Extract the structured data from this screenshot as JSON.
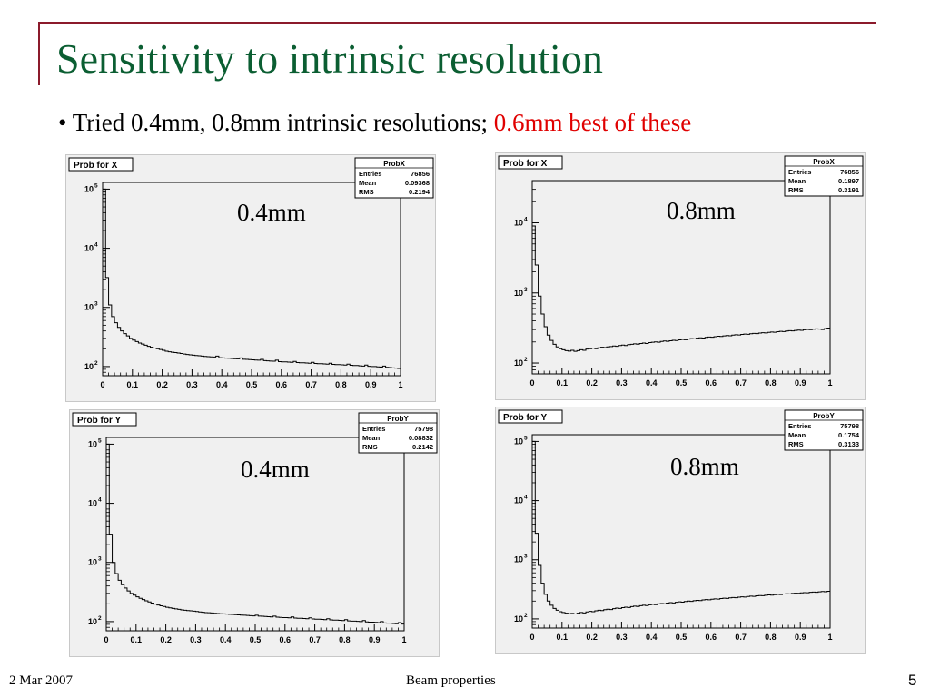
{
  "slide": {
    "title": "Sensitivity to intrinsic resolution",
    "bullet_prefix": "• Tried 0.4mm, 0.8mm intrinsic resolutions; ",
    "bullet_highlight": "0.6mm best of these",
    "footer_date": "2 Mar 2007",
    "footer_center": "Beam properties",
    "page_number": "5",
    "accent_color": "#0b5e32",
    "rule_color": "#8b1a2b",
    "highlight_color": "#e00000"
  },
  "chart_data": [
    {
      "type": "histogram",
      "panel_title": "Prob for X",
      "overlay_label": "0.4mm",
      "stats": {
        "name": "ProbX",
        "rows": [
          [
            "Entries",
            "76856"
          ],
          [
            "Mean",
            "0.09368"
          ],
          [
            "RMS",
            "0.2194"
          ]
        ]
      },
      "x_ticks": [
        "0",
        "0.1",
        "0.2",
        "0.3",
        "0.4",
        "0.5",
        "0.6",
        "0.7",
        "0.8",
        "0.9",
        "1"
      ],
      "y_scale": "log",
      "y_ticks": [
        {
          "base": "10",
          "exp": "2",
          "value": 100
        },
        {
          "base": "10",
          "exp": "3",
          "value": 1000
        },
        {
          "base": "10",
          "exp": "4",
          "value": 10000
        },
        {
          "base": "10",
          "exp": "5",
          "value": 100000
        }
      ],
      "xlim": [
        0,
        1
      ],
      "ylim": [
        70,
        130000
      ],
      "bins": 100,
      "values": [
        100000,
        3200,
        1100,
        700,
        550,
        460,
        400,
        360,
        330,
        300,
        280,
        265,
        250,
        240,
        230,
        220,
        212,
        206,
        200,
        194,
        188,
        182,
        178,
        175,
        172,
        169,
        166,
        163,
        160,
        158,
        156,
        154,
        152,
        150,
        148,
        147,
        146,
        145,
        150,
        141,
        140,
        139,
        138,
        137,
        136,
        135,
        140,
        133,
        132,
        131,
        130,
        129,
        128,
        132,
        126,
        125,
        124,
        123,
        128,
        121,
        120,
        120,
        119,
        118,
        122,
        117,
        116,
        116,
        115,
        114,
        118,
        113,
        112,
        112,
        111,
        110,
        114,
        109,
        108,
        108,
        107,
        106,
        110,
        105,
        104,
        104,
        103,
        102,
        106,
        101,
        100,
        100,
        99,
        98,
        102,
        97,
        96,
        95,
        94,
        93
      ]
    },
    {
      "type": "histogram",
      "panel_title": "Prob for X",
      "overlay_label": "0.8mm",
      "stats": {
        "name": "ProbX",
        "rows": [
          [
            "Entries",
            "76856"
          ],
          [
            "Mean",
            "0.1897"
          ],
          [
            "RMS",
            "0.3191"
          ]
        ]
      },
      "x_ticks": [
        "0",
        "0.1",
        "0.2",
        "0.3",
        "0.4",
        "0.5",
        "0.6",
        "0.7",
        "0.8",
        "0.9",
        "1"
      ],
      "y_scale": "log",
      "y_ticks": [
        {
          "base": "10",
          "exp": "2",
          "value": 100
        },
        {
          "base": "10",
          "exp": "3",
          "value": 1000
        },
        {
          "base": "10",
          "exp": "4",
          "value": 10000
        }
      ],
      "xlim": [
        0,
        1
      ],
      "ylim": [
        70,
        40000
      ],
      "bins": 100,
      "values": [
        9000,
        2500,
        900,
        500,
        330,
        250,
        210,
        185,
        170,
        160,
        155,
        150,
        148,
        152,
        147,
        150,
        155,
        152,
        158,
        160,
        163,
        160,
        165,
        168,
        166,
        170,
        172,
        175,
        173,
        178,
        180,
        178,
        183,
        185,
        188,
        186,
        190,
        193,
        190,
        196,
        198,
        200,
        198,
        203,
        206,
        204,
        208,
        211,
        209,
        214,
        217,
        215,
        220,
        223,
        221,
        226,
        229,
        227,
        232,
        235,
        233,
        238,
        241,
        239,
        244,
        247,
        245,
        250,
        253,
        251,
        256,
        259,
        257,
        262,
        265,
        263,
        268,
        271,
        269,
        274,
        277,
        275,
        280,
        283,
        281,
        286,
        289,
        287,
        292,
        295,
        293,
        298,
        301,
        299,
        304,
        307,
        305,
        300,
        310,
        315
      ]
    },
    {
      "type": "histogram",
      "panel_title": "Prob for Y",
      "overlay_label": "0.4mm",
      "stats": {
        "name": "ProbY",
        "rows": [
          [
            "Entries",
            "75798"
          ],
          [
            "Mean",
            "0.08832"
          ],
          [
            "RMS",
            "0.2142"
          ]
        ]
      },
      "x_ticks": [
        "0",
        "0.1",
        "0.2",
        "0.3",
        "0.4",
        "0.5",
        "0.6",
        "0.7",
        "0.8",
        "0.9",
        "1"
      ],
      "y_scale": "log",
      "y_ticks": [
        {
          "base": "10",
          "exp": "2",
          "value": 100
        },
        {
          "base": "10",
          "exp": "3",
          "value": 1000
        },
        {
          "base": "10",
          "exp": "4",
          "value": 10000
        },
        {
          "base": "10",
          "exp": "5",
          "value": 100000
        }
      ],
      "xlim": [
        0,
        1
      ],
      "ylim": [
        70,
        130000
      ],
      "bins": 100,
      "values": [
        100000,
        3000,
        1000,
        650,
        500,
        420,
        370,
        330,
        300,
        280,
        262,
        248,
        236,
        225,
        215,
        206,
        198,
        191,
        185,
        180,
        175,
        171,
        167,
        164,
        161,
        158,
        156,
        154,
        152,
        150,
        148,
        146,
        144,
        142,
        141,
        140,
        138,
        137,
        136,
        135,
        134,
        133,
        132,
        131,
        130,
        129,
        128,
        127,
        126,
        125,
        128,
        124,
        123,
        122,
        121,
        120,
        124,
        119,
        118,
        117,
        117,
        116,
        120,
        115,
        114,
        114,
        113,
        112,
        116,
        111,
        110,
        110,
        109,
        108,
        112,
        107,
        106,
        106,
        105,
        104,
        108,
        103,
        102,
        102,
        101,
        100,
        104,
        99,
        98,
        98,
        97,
        96,
        100,
        95,
        94,
        94,
        93,
        92,
        96,
        91
      ]
    },
    {
      "type": "histogram",
      "panel_title": "Prob for Y",
      "overlay_label": "0.8mm",
      "stats": {
        "name": "ProbY",
        "rows": [
          [
            "Entries",
            "75798"
          ],
          [
            "Mean",
            "0.1754"
          ],
          [
            "RMS",
            "0.3133"
          ]
        ]
      },
      "x_ticks": [
        "0",
        "0.1",
        "0.2",
        "0.3",
        "0.4",
        "0.5",
        "0.6",
        "0.7",
        "0.8",
        "0.9",
        "1"
      ],
      "y_scale": "log",
      "y_ticks": [
        {
          "base": "10",
          "exp": "2",
          "value": 100
        },
        {
          "base": "10",
          "exp": "3",
          "value": 1000
        },
        {
          "base": "10",
          "exp": "4",
          "value": 10000
        },
        {
          "base": "10",
          "exp": "5",
          "value": 100000
        }
      ],
      "xlim": [
        0,
        1
      ],
      "ylim": [
        70,
        130000
      ],
      "bins": 100,
      "values": [
        100000,
        2800,
        800,
        400,
        260,
        200,
        170,
        150,
        140,
        132,
        128,
        125,
        122,
        124,
        121,
        125,
        128,
        126,
        131,
        134,
        132,
        137,
        140,
        138,
        143,
        146,
        144,
        149,
        152,
        150,
        155,
        158,
        156,
        161,
        164,
        162,
        167,
        170,
        168,
        173,
        176,
        174,
        179,
        182,
        180,
        185,
        188,
        186,
        191,
        194,
        192,
        197,
        200,
        198,
        203,
        206,
        204,
        209,
        212,
        210,
        215,
        218,
        216,
        221,
        224,
        222,
        227,
        230,
        228,
        233,
        236,
        234,
        239,
        242,
        240,
        245,
        248,
        246,
        251,
        254,
        252,
        257,
        260,
        258,
        263,
        266,
        264,
        269,
        272,
        270,
        275,
        278,
        276,
        281,
        284,
        282,
        287,
        290,
        288,
        293
      ]
    }
  ]
}
